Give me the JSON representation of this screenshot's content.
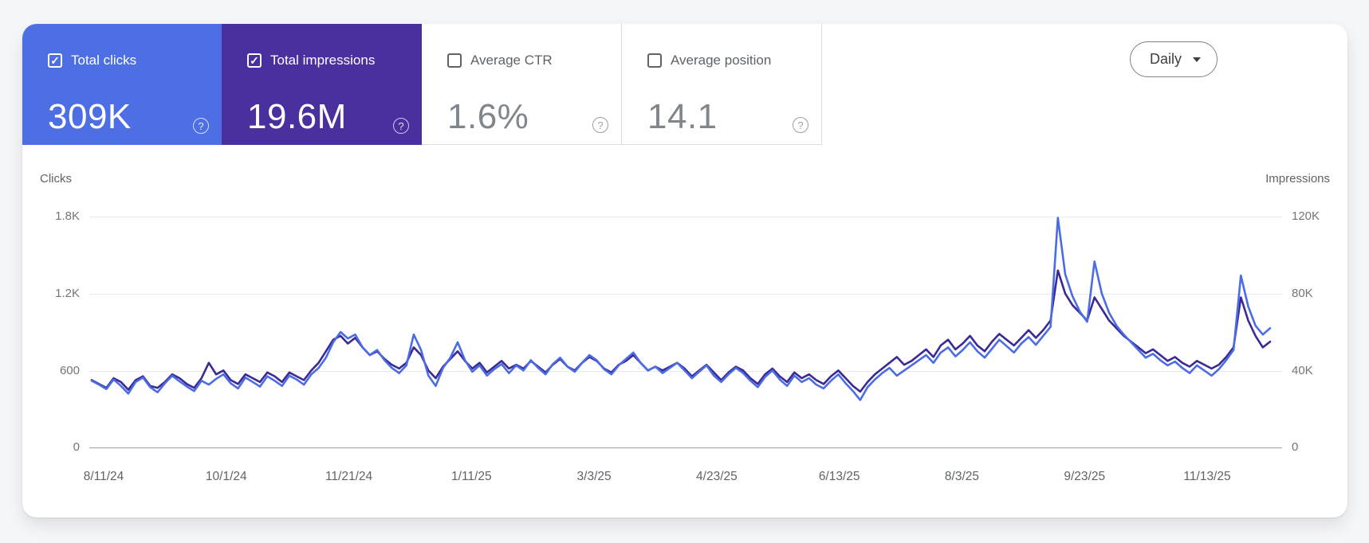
{
  "cards": [
    {
      "label": "Total clicks",
      "value": "309K",
      "checked": true,
      "bg": "#4d6fe3",
      "text_color": "#ffffff"
    },
    {
      "label": "Total impressions",
      "value": "19.6M",
      "checked": true,
      "bg": "#4a2f9f",
      "text_color": "#ffffff"
    },
    {
      "label": "Average CTR",
      "value": "1.6%",
      "checked": false,
      "bg": "#ffffff",
      "text_color": "#80868b"
    },
    {
      "label": "Average position",
      "value": "14.1",
      "checked": false,
      "bg": "#ffffff",
      "text_color": "#80868b"
    }
  ],
  "controls": {
    "granularity": "Daily"
  },
  "chart_data": {
    "type": "line",
    "x_start": "8/11/24",
    "x_end": "12/9/25",
    "sample_every_days": 3,
    "x_tick_labels": [
      "8/11/24",
      "10/1/24",
      "11/21/24",
      "1/11/25",
      "3/3/25",
      "4/23/25",
      "6/13/25",
      "8/3/25",
      "9/23/25",
      "11/13/25"
    ],
    "left_axis": {
      "title": "Clicks",
      "ticks": [
        "1.8K",
        "1.2K",
        "600",
        "0"
      ],
      "max": 1800
    },
    "right_axis": {
      "title": "Impressions",
      "ticks": [
        "120K",
        "80K",
        "40K",
        "0"
      ],
      "max": 120000
    },
    "grid": true,
    "legend": "none",
    "series": [
      {
        "name": "Clicks",
        "axis": "left",
        "color": "#4b6ce4",
        "values": [
          520,
          490,
          455,
          530,
          480,
          420,
          510,
          545,
          470,
          430,
          500,
          560,
          515,
          475,
          440,
          520,
          490,
          535,
          570,
          500,
          460,
          545,
          510,
          475,
          555,
          520,
          480,
          560,
          530,
          490,
          570,
          620,
          700,
          820,
          900,
          850,
          880,
          780,
          720,
          760,
          680,
          620,
          580,
          640,
          880,
          760,
          560,
          480,
          620,
          700,
          820,
          680,
          590,
          640,
          560,
          610,
          650,
          580,
          640,
          600,
          680,
          620,
          570,
          650,
          700,
          630,
          590,
          660,
          720,
          680,
          610,
          570,
          640,
          690,
          740,
          660,
          600,
          630,
          580,
          620,
          660,
          600,
          540,
          590,
          640,
          560,
          510,
          570,
          620,
          580,
          520,
          470,
          550,
          600,
          530,
          480,
          560,
          510,
          540,
          490,
          460,
          520,
          570,
          500,
          440,
          370,
          470,
          530,
          580,
          620,
          560,
          600,
          640,
          680,
          720,
          660,
          740,
          780,
          710,
          760,
          820,
          750,
          700,
          770,
          840,
          790,
          740,
          810,
          860,
          800,
          870,
          940,
          1790,
          1350,
          1180,
          1060,
          980,
          1450,
          1200,
          1050,
          950,
          880,
          820,
          760,
          700,
          730,
          680,
          640,
          670,
          620,
          580,
          640,
          600,
          560,
          610,
          680,
          760,
          1340,
          1100,
          950,
          880,
          930
        ]
      },
      {
        "name": "Impressions",
        "axis": "right",
        "color": "#3c2a94",
        "values": [
          35000,
          33000,
          31000,
          36000,
          34000,
          30000,
          35000,
          37000,
          32000,
          31000,
          34000,
          38000,
          36000,
          33000,
          31000,
          36000,
          44000,
          38000,
          40000,
          35000,
          33000,
          38000,
          36000,
          34000,
          39000,
          37000,
          34000,
          39000,
          37000,
          35000,
          40000,
          44000,
          50000,
          56000,
          58000,
          54000,
          57000,
          52000,
          48000,
          50000,
          46000,
          43000,
          41000,
          44000,
          52000,
          48000,
          40000,
          36000,
          42000,
          46000,
          50000,
          45000,
          41000,
          44000,
          39000,
          42000,
          45000,
          41000,
          43000,
          41000,
          45000,
          42000,
          39000,
          43000,
          46000,
          42000,
          40000,
          44000,
          47000,
          45000,
          41000,
          39000,
          43000,
          45000,
          48000,
          44000,
          40000,
          42000,
          40000,
          42000,
          44000,
          41000,
          37000,
          40000,
          43000,
          39000,
          35000,
          39000,
          42000,
          40000,
          36000,
          33000,
          38000,
          41000,
          37000,
          34000,
          39000,
          36000,
          38000,
          35000,
          33000,
          37000,
          40000,
          36000,
          32000,
          29000,
          34000,
          38000,
          41000,
          44000,
          47000,
          43000,
          45000,
          48000,
          51000,
          47000,
          53000,
          56000,
          51000,
          54000,
          58000,
          53000,
          50000,
          55000,
          59000,
          56000,
          53000,
          57000,
          61000,
          57000,
          61000,
          66000,
          92000,
          80000,
          74000,
          70000,
          66000,
          78000,
          72000,
          66000,
          62000,
          58000,
          55000,
          52000,
          49000,
          51000,
          48000,
          45000,
          47000,
          44000,
          42000,
          45000,
          43000,
          41000,
          43000,
          47000,
          52000,
          78000,
          66000,
          58000,
          52000,
          55000
        ]
      }
    ]
  }
}
